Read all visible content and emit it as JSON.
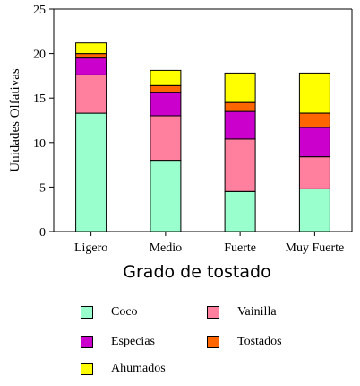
{
  "chart_data": {
    "type": "bar",
    "stacked": true,
    "categories": [
      "Ligero",
      "Medio",
      "Fuerte",
      "Muy Fuerte"
    ],
    "series": [
      {
        "name": "Coco",
        "color": "#99ffcc",
        "values": [
          13.3,
          8.0,
          4.5,
          4.8
        ]
      },
      {
        "name": "Vainilla",
        "color": "#ff7f9f",
        "values": [
          4.3,
          5.0,
          5.9,
          3.6
        ]
      },
      {
        "name": "Especias",
        "color": "#cc00cc",
        "values": [
          1.9,
          2.6,
          3.1,
          3.3
        ]
      },
      {
        "name": "Tostados",
        "color": "#ff6600",
        "values": [
          0.5,
          0.8,
          1.0,
          1.6
        ]
      },
      {
        "name": "Ahumados",
        "color": "#ffff00",
        "values": [
          1.2,
          1.7,
          3.3,
          4.5
        ]
      }
    ],
    "xlabel": "Grado de tostado",
    "ylabel": "Unidades Olfativas",
    "ylim": [
      0,
      25
    ],
    "yticks": [
      "0",
      "5",
      "10",
      "15",
      "20",
      "25"
    ],
    "grid": false,
    "legend_position": "bottom"
  }
}
